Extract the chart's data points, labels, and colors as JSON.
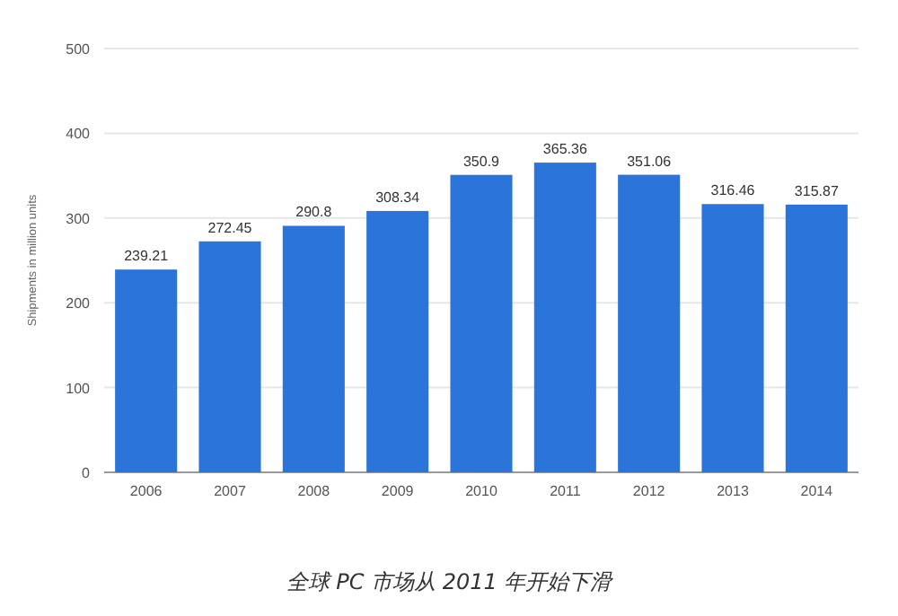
{
  "chart_data": {
    "type": "bar",
    "ylabel": "Shipments in million units",
    "annotations": [
      "全球 PC 市场从 2011 年开始下滑"
    ],
    "categories": [
      "2006",
      "2007",
      "2008",
      "2009",
      "2010",
      "2011",
      "2012",
      "2013",
      "2014"
    ],
    "values": [
      239.21,
      272.45,
      290.8,
      308.34,
      350.9,
      365.36,
      351.06,
      316.46,
      315.87
    ],
    "color": "#2b74d9",
    "data_labels": true,
    "ylim": [
      0,
      500
    ],
    "yticks": [
      0,
      100,
      200,
      300,
      400,
      500
    ],
    "grid": "y"
  }
}
